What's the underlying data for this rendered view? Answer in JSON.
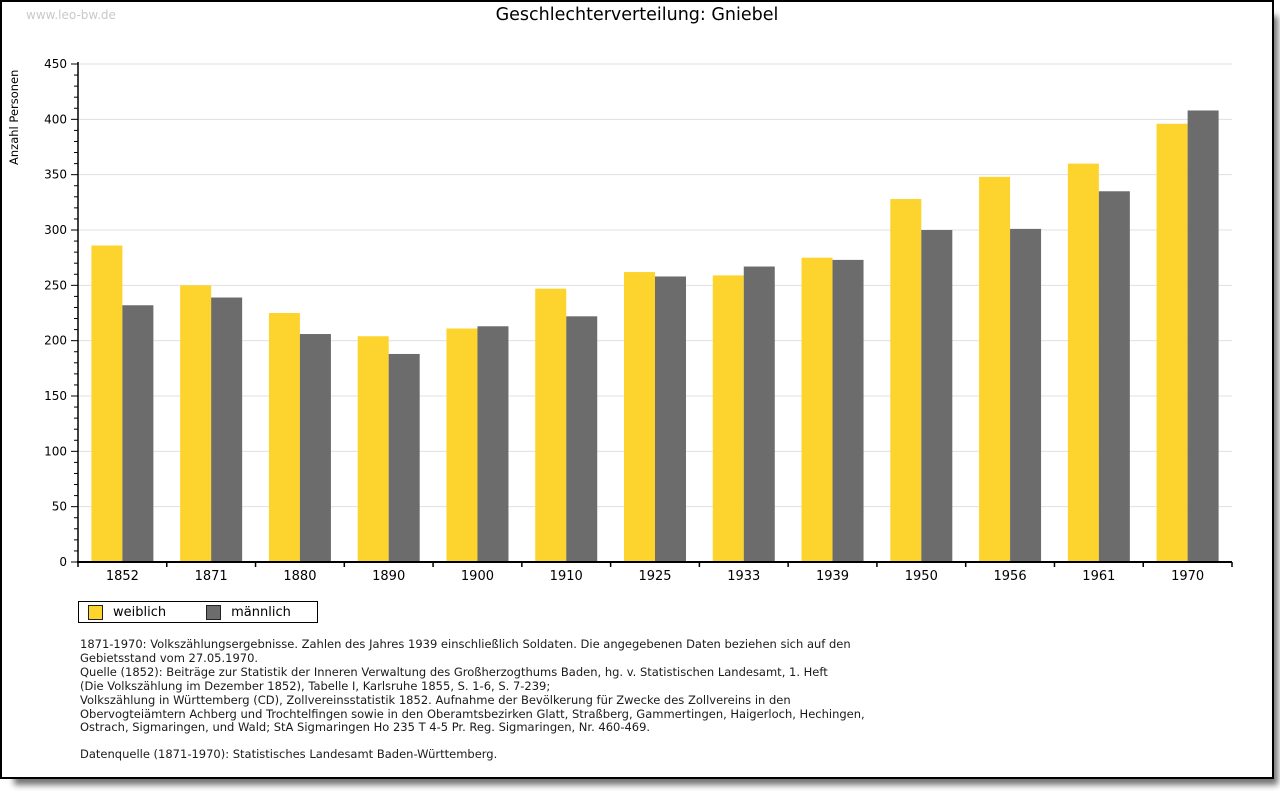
{
  "watermark": "www.leo-bw.de",
  "title": "Geschlechterverteilung: Gniebel",
  "chart_data": {
    "type": "bar",
    "title": "Geschlechterverteilung: Gniebel",
    "categories": [
      "1852",
      "1871",
      "1880",
      "1890",
      "1900",
      "1910",
      "1925",
      "1933",
      "1939",
      "1950",
      "1956",
      "1961",
      "1970"
    ],
    "series": [
      {
        "name": "weiblich",
        "color": "#FCD42D",
        "values": [
          286,
          250,
          225,
          204,
          211,
          247,
          262,
          259,
          275,
          328,
          348,
          360,
          396
        ]
      },
      {
        "name": "männlich",
        "color": "#6C6C6C",
        "values": [
          232,
          239,
          206,
          188,
          213,
          222,
          258,
          267,
          273,
          300,
          301,
          335,
          408
        ]
      }
    ],
    "xlabel": "",
    "ylabel": "Anzahl Personen",
    "ylim": [
      0,
      450
    ],
    "ytick_step": 50,
    "yticks": [
      0,
      50,
      100,
      150,
      200,
      250,
      300,
      350,
      400,
      450
    ],
    "minor_tick_step": 10,
    "grid": true,
    "gridline_color": "#e0e0e0",
    "legend_position": "bottom-left"
  },
  "footnotes": {
    "lines": [
      "1871-1970: Volkszählungsergebnisse. Zahlen des Jahres 1939 einschließlich Soldaten. Die angegebenen Daten beziehen sich auf den",
      "Gebietsstand vom 27.05.1970.",
      "Quelle (1852): Beiträge zur Statistik der Inneren Verwaltung des Großherzogthums Baden, hg. v. Statistischen Landesamt, 1. Heft",
      "(Die Volkszählung im Dezember 1852), Tabelle I, Karlsruhe 1855, S. 1-6, S. 7-239;",
      "Volkszählung in Württemberg (CD), Zollvereinsstatistik 1852. Aufnahme der Bevölkerung für Zwecke des Zollvereins in den",
      "Obervogteiämtern Achberg und Trochtelfingen sowie in den Oberamtsbezirken Glatt, Straßberg, Gammertingen, Haigerloch, Hechingen,",
      "Ostrach, Sigmaringen, und Wald; StA Sigmaringen Ho 235 T 4-5 Pr. Reg. Sigmaringen, Nr. 460-469."
    ],
    "datasource": "Datenquelle (1871-1970): Statistisches Landesamt Baden-Württemberg."
  }
}
